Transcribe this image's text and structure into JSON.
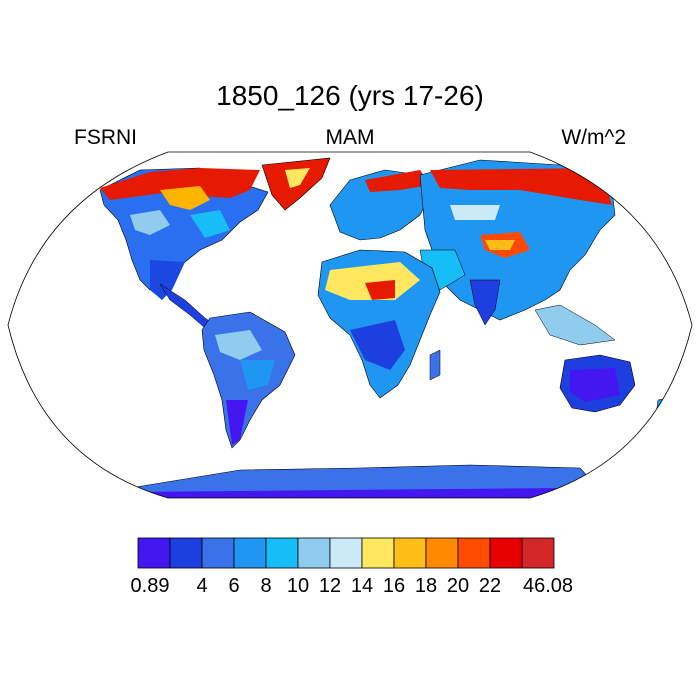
{
  "title": "1850_126 (yrs 17-26)",
  "variable": "FSRNI",
  "season": "MAM",
  "units": "W/m^2",
  "colorbar": {
    "colors": [
      "#4416f0",
      "#1d3fe0",
      "#3a72ea",
      "#1f96f2",
      "#17bdf6",
      "#8fccee",
      "#cce9f8",
      "#ffe760",
      "#ffbd18",
      "#ff8a00",
      "#ff4a00",
      "#e80000",
      "#d42828"
    ],
    "labels": [
      "0.89",
      "4",
      "6",
      "8",
      "10",
      "12",
      "14",
      "16",
      "18",
      "20",
      "22",
      "46.08"
    ]
  },
  "map": {
    "projection": "robinson",
    "ocean_color": "#ffffff",
    "coastline_color": "#000000"
  }
}
